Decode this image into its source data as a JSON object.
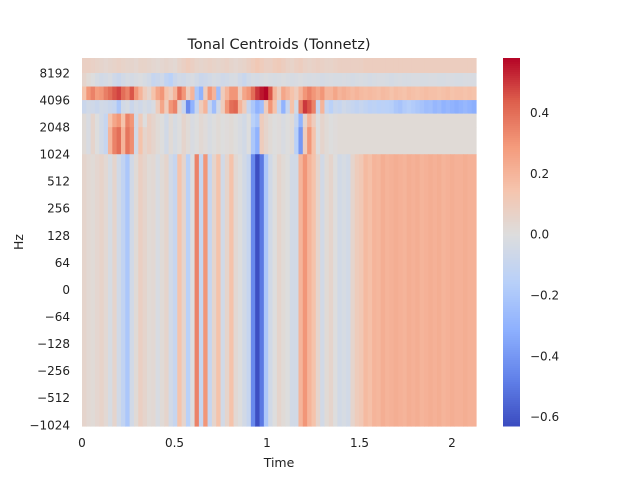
{
  "chart_data": {
    "type": "heatmap",
    "title": "Tonal Centroids (Tonnetz)",
    "xlabel": "Time",
    "ylabel": "Hz",
    "xlim": [
      0,
      2.13
    ],
    "x_ticks": [
      "0",
      "0.5",
      "1",
      "1.5",
      "2"
    ],
    "y_ticks": [
      "8192",
      "4096",
      "2048",
      "1024",
      "512",
      "256",
      "128",
      "64",
      "0",
      "−64",
      "−128",
      "−256",
      "−512",
      "−1024"
    ],
    "colorbar": {
      "colormap": "coolwarm",
      "range": [
        -0.63,
        0.58
      ],
      "ticks": [
        "0.4",
        "0.2",
        "0.0",
        "−0.2",
        "−0.4",
        "−0.6"
      ],
      "tick_values": [
        0.4,
        0.2,
        0.0,
        -0.2,
        -0.4,
        -0.6
      ]
    },
    "frames": 91,
    "time_extent": 2.13,
    "rows": [
      {
        "name": "row-0",
        "y_range": [
          8192,
          16384
        ],
        "values": [
          0.08,
          0.08,
          0.07,
          0.06,
          0.05,
          0.04,
          0.05,
          0.06,
          0.07,
          0.06,
          0.05,
          0.05,
          0.04,
          0.06,
          0.06,
          0.05,
          0.04,
          0.03,
          0.04,
          0.05,
          0.04,
          0.03,
          0.06,
          0.08,
          0.1,
          0.08,
          0.06,
          0.05,
          0.06,
          0.07,
          0.06,
          0.05,
          0.06,
          0.07,
          0.05,
          0.04,
          0.05,
          0.06,
          0.08,
          0.1,
          0.12,
          0.1,
          0.08,
          0.08,
          0.1,
          0.11,
          0.09,
          0.07,
          0.06,
          0.08,
          0.09,
          0.07,
          0.06,
          0.07,
          0.08,
          0.07,
          0.06,
          0.06,
          0.07,
          0.08,
          0.08,
          0.08,
          0.08,
          0.08,
          0.08,
          0.09,
          0.09,
          0.09,
          0.09,
          0.09,
          0.09,
          0.09,
          0.09,
          0.09,
          0.09,
          0.09,
          0.09,
          0.09,
          0.09,
          0.09,
          0.09,
          0.09,
          0.09,
          0.09,
          0.09,
          0.09,
          0.09,
          0.09,
          0.09,
          0.09,
          0.09
        ]
      },
      {
        "name": "row-1",
        "y_range": [
          5793,
          8192
        ],
        "values": [
          0.05,
          0.02,
          0.0,
          -0.03,
          -0.05,
          -0.04,
          -0.02,
          -0.06,
          -0.08,
          -0.05,
          -0.03,
          -0.04,
          -0.02,
          -0.01,
          -0.03,
          -0.05,
          -0.1,
          -0.08,
          -0.06,
          -0.12,
          -0.15,
          -0.08,
          -0.05,
          -0.06,
          -0.04,
          -0.02,
          -0.05,
          -0.08,
          -0.07,
          -0.05,
          -0.03,
          -0.04,
          -0.06,
          -0.05,
          -0.03,
          -0.02,
          -0.06,
          -0.09,
          -0.05,
          -0.03,
          -0.04,
          -0.02,
          -0.01,
          -0.02,
          -0.03,
          -0.02,
          -0.01,
          -0.02,
          -0.03,
          -0.02,
          -0.01,
          -0.02,
          -0.03,
          -0.02,
          -0.03,
          -0.04,
          -0.03,
          -0.02,
          -0.03,
          -0.03,
          -0.02,
          -0.03,
          -0.04,
          -0.03,
          -0.02,
          -0.03,
          -0.04,
          -0.03,
          -0.02,
          -0.02,
          -0.03,
          -0.04,
          -0.03,
          -0.02,
          -0.03,
          -0.03,
          -0.02,
          -0.02,
          -0.03,
          -0.03,
          -0.02,
          -0.02,
          -0.03,
          -0.03,
          -0.02,
          -0.02,
          -0.03,
          -0.03,
          -0.02,
          -0.02,
          -0.02
        ]
      },
      {
        "name": "row-2",
        "y_range": [
          4096,
          5793
        ],
        "values": [
          0.15,
          0.3,
          0.35,
          0.28,
          0.3,
          0.36,
          0.4,
          0.45,
          0.48,
          0.4,
          0.35,
          0.45,
          0.3,
          0.2,
          0.1,
          0.05,
          0.15,
          0.25,
          0.3,
          0.15,
          0.1,
          0.2,
          0.4,
          0.3,
          0.1,
          0.2,
          -0.2,
          -0.3,
          0.1,
          0.3,
          0.2,
          -0.25,
          0.1,
          0.2,
          0.3,
          0.3,
          0.1,
          0.25,
          0.3,
          0.4,
          0.5,
          0.55,
          0.58,
          0.45,
          0.2,
          0.1,
          0.25,
          0.2,
          0.15,
          0.1,
          0.2,
          0.3,
          0.35,
          0.3,
          0.25,
          0.3,
          0.2,
          0.2,
          0.25,
          0.2,
          0.22,
          0.2,
          0.18,
          0.2,
          0.18,
          0.17,
          0.18,
          0.17,
          0.16,
          0.18,
          0.17,
          0.15,
          0.17,
          0.16,
          0.15,
          0.17,
          0.16,
          0.15,
          0.16,
          0.17,
          0.16,
          0.16,
          0.15,
          0.16,
          0.17,
          0.15,
          0.16,
          0.16,
          0.15,
          0.16,
          0.15
        ]
      },
      {
        "name": "row-3",
        "y_range": [
          2896,
          4096
        ],
        "values": [
          -0.08,
          -0.05,
          -0.06,
          -0.08,
          -0.05,
          -0.06,
          -0.08,
          -0.1,
          -0.2,
          -0.05,
          -0.03,
          -0.08,
          -0.04,
          -0.06,
          -0.03,
          -0.05,
          -0.02,
          0.1,
          0.25,
          0.1,
          0.3,
          0.35,
          0.05,
          -0.1,
          -0.45,
          -0.3,
          -0.1,
          0.1,
          0.2,
          -0.1,
          -0.25,
          -0.05,
          0.1,
          0.3,
          0.4,
          0.42,
          0.2,
          0.1,
          -0.1,
          -0.2,
          -0.3,
          -0.25,
          0.1,
          0.3,
          0.15,
          -0.1,
          -0.3,
          -0.1,
          0.15,
          -0.05,
          0.35,
          0.5,
          0.45,
          0.35,
          -0.1,
          0.2,
          -0.1,
          -0.15,
          -0.08,
          -0.1,
          -0.06,
          -0.08,
          -0.1,
          -0.12,
          -0.1,
          -0.12,
          -0.14,
          -0.13,
          -0.15,
          -0.14,
          -0.15,
          -0.16,
          -0.2,
          -0.22,
          -0.18,
          -0.16,
          -0.18,
          -0.2,
          -0.22,
          -0.25,
          -0.24,
          -0.28,
          -0.26,
          -0.3,
          -0.28,
          -0.3,
          -0.32,
          -0.3,
          -0.28,
          -0.3,
          -0.32
        ]
      },
      {
        "name": "row-4",
        "y_range": [
          2048,
          2896
        ],
        "values": [
          0.02,
          -0.02,
          0.05,
          0.0,
          -0.05,
          -0.1,
          0.15,
          0.25,
          0.3,
          0.15,
          0.35,
          0.3,
          -0.05,
          0.1,
          0.0,
          0.08,
          0.05,
          0.02,
          0.0,
          -0.05,
          0.02,
          -0.03,
          0.0,
          0.05,
          0.02,
          -0.02,
          0.0,
          0.03,
          0.01,
          -0.02,
          0.0,
          0.02,
          0.0,
          0.01,
          0.02,
          0.0,
          -0.02,
          -0.05,
          0.0,
          -0.15,
          -0.2,
          0.1,
          0.05,
          0.02,
          0.0,
          0.01,
          -0.02,
          0.0,
          0.02,
          -0.1,
          -0.3,
          0.05,
          0.2,
          0.1,
          0.0,
          0.05,
          0.02,
          0.0,
          0.01,
          0.02,
          0.02,
          0.02,
          0.02,
          0.02,
          0.02,
          0.02,
          0.02,
          0.02,
          0.02,
          0.02,
          0.02,
          0.02,
          0.02,
          0.02,
          0.02,
          0.02,
          0.02,
          0.02,
          0.02,
          0.02,
          0.02,
          0.02,
          0.02,
          0.02,
          0.02,
          0.02,
          0.02,
          0.02,
          0.02,
          0.02,
          0.02
        ]
      },
      {
        "name": "row-5",
        "y_range": [
          1024,
          2048
        ],
        "values": [
          0.02,
          -0.02,
          0.05,
          0.0,
          -0.05,
          -0.1,
          0.2,
          0.35,
          0.4,
          0.2,
          0.38,
          0.32,
          -0.05,
          0.15,
          0.05,
          0.08,
          0.05,
          0.02,
          0.0,
          -0.05,
          0.02,
          -0.03,
          0.0,
          0.05,
          0.02,
          -0.02,
          0.0,
          0.03,
          0.01,
          -0.02,
          0.0,
          0.02,
          0.0,
          0.01,
          0.02,
          0.0,
          -0.02,
          -0.05,
          0.0,
          -0.2,
          -0.3,
          0.1,
          0.05,
          0.02,
          0.0,
          0.01,
          -0.02,
          0.0,
          0.02,
          -0.15,
          -0.4,
          0.1,
          0.3,
          0.15,
          0.0,
          0.05,
          0.02,
          0.0,
          0.01,
          0.02,
          0.02,
          0.02,
          0.02,
          0.02,
          0.02,
          0.02,
          0.02,
          0.02,
          0.02,
          0.02,
          0.02,
          0.02,
          0.02,
          0.02,
          0.02,
          0.02,
          0.02,
          0.02,
          0.02,
          0.02,
          0.02,
          0.02,
          0.02,
          0.02,
          0.02,
          0.02,
          0.02,
          0.02,
          0.02,
          0.02,
          0.02
        ]
      },
      {
        "name": "row-6",
        "y_range": [
          -2048,
          1024
        ],
        "values": [
          0.05,
          0.03,
          0.02,
          0.04,
          0.06,
          0.03,
          -0.03,
          0.05,
          -0.05,
          -0.12,
          -0.2,
          -0.05,
          0.02,
          0.08,
          0.05,
          0.02,
          0.03,
          -0.02,
          0.02,
          0.05,
          -0.05,
          -0.1,
          0.15,
          0.05,
          -0.15,
          0.0,
          0.35,
          -0.1,
          0.3,
          -0.1,
          0.05,
          0.15,
          -0.05,
          0.05,
          0.15,
          0.03,
          0.0,
          -0.05,
          -0.1,
          -0.45,
          -0.62,
          -0.5,
          -0.2,
          -0.05,
          0.0,
          0.05,
          0.02,
          0.0,
          -0.05,
          -0.05,
          0.2,
          0.3,
          0.2,
          0.15,
          0.05,
          -0.05,
          0.02,
          0.05,
          0.0,
          -0.05,
          -0.03,
          -0.05,
          0.05,
          0.1,
          0.12,
          0.18,
          0.16,
          0.2,
          0.19,
          0.22,
          0.2,
          0.21,
          0.22,
          0.21,
          0.2,
          0.22,
          0.21,
          0.22,
          0.2,
          0.21,
          0.22,
          0.21,
          0.22,
          0.2,
          0.21,
          0.22,
          0.21,
          0.21,
          0.22,
          0.21,
          0.21
        ]
      }
    ]
  }
}
